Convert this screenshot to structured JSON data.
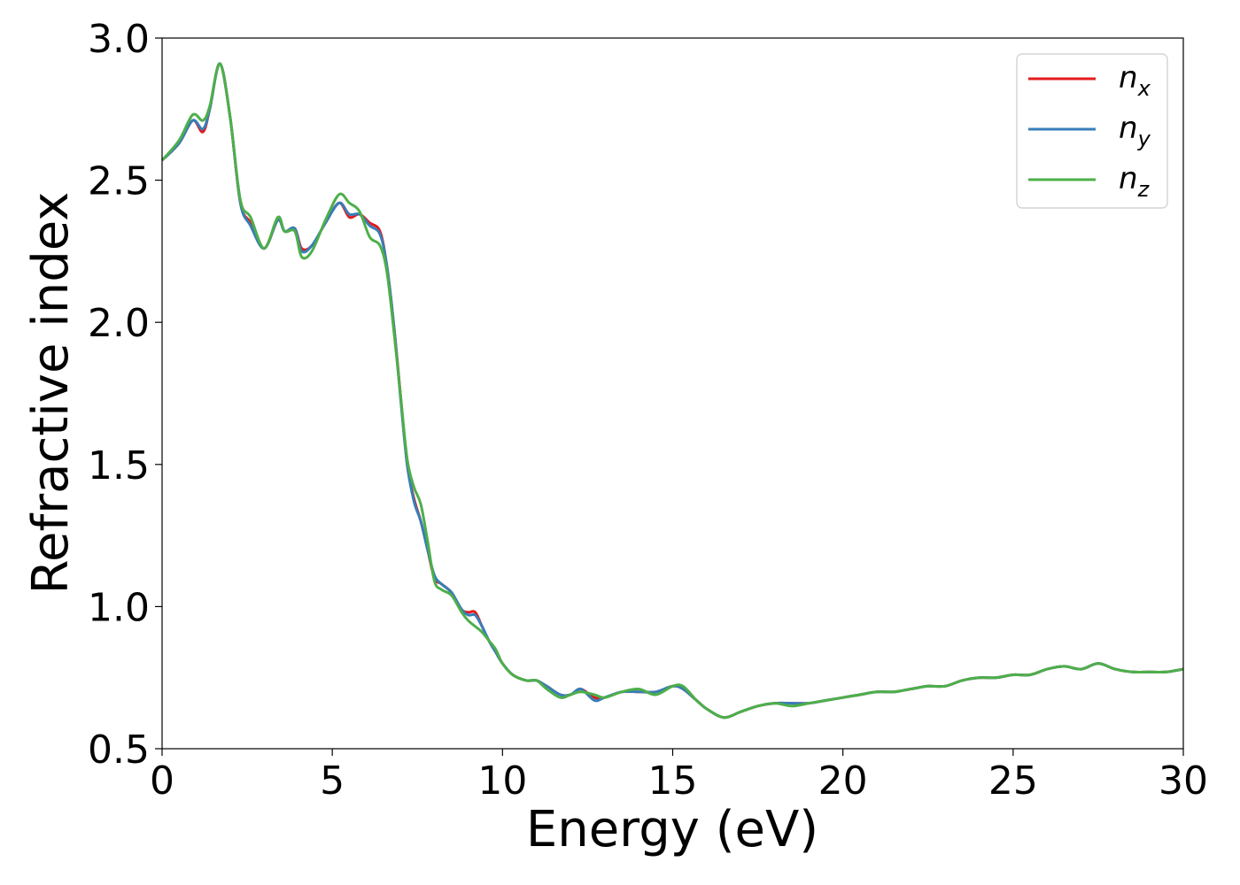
{
  "chart_data": {
    "type": "line",
    "title": "",
    "xlabel": "Energy (eV)",
    "ylabel": "Refractive index",
    "xlim": [
      0,
      30
    ],
    "ylim": [
      0.5,
      3.0
    ],
    "xticks": [
      0,
      5,
      10,
      15,
      20,
      25,
      30
    ],
    "xtick_labels": [
      "0",
      "5",
      "10",
      "15",
      "20",
      "25",
      "30"
    ],
    "yticks": [
      0.5,
      1.0,
      1.5,
      2.0,
      2.5,
      3.0
    ],
    "ytick_labels": [
      "0.5",
      "1.0",
      "1.5",
      "2.0",
      "2.5",
      "3.0"
    ],
    "grid": false,
    "legend_position": "top-right",
    "series": [
      {
        "name": "n_x",
        "label_main": "n",
        "label_sub": "x",
        "color": "#e41a1c",
        "x": [
          0,
          0.5,
          0.9,
          1.2,
          1.4,
          1.7,
          2.0,
          2.3,
          2.6,
          3.0,
          3.4,
          3.6,
          3.9,
          4.1,
          4.4,
          4.8,
          5.2,
          5.5,
          5.8,
          6.1,
          6.4,
          6.6,
          6.8,
          7.0,
          7.2,
          7.4,
          7.6,
          7.8,
          8.0,
          8.2,
          8.5,
          8.8,
          9.0,
          9.2,
          9.4,
          9.6,
          9.8,
          10.0,
          10.3,
          10.7,
          11.0,
          11.3,
          11.7,
          12.0,
          12.3,
          12.7,
          13.0,
          13.5,
          14.0,
          14.5,
          15.0,
          15.3,
          15.7,
          16.0,
          16.5,
          17.0,
          17.5,
          18.0,
          18.5,
          19.0,
          19.5,
          20.0,
          20.5,
          21.0,
          21.5,
          22.0,
          22.5,
          23.0,
          23.5,
          24.0,
          24.5,
          25.0,
          25.5,
          26.0,
          26.5,
          27.0,
          27.5,
          28.0,
          28.5,
          29.0,
          29.5,
          30.0
        ],
        "y": [
          2.57,
          2.63,
          2.71,
          2.67,
          2.75,
          2.91,
          2.72,
          2.42,
          2.35,
          2.26,
          2.36,
          2.32,
          2.33,
          2.26,
          2.27,
          2.35,
          2.42,
          2.37,
          2.38,
          2.35,
          2.32,
          2.2,
          2.0,
          1.75,
          1.5,
          1.38,
          1.3,
          1.2,
          1.1,
          1.08,
          1.05,
          0.99,
          0.98,
          0.98,
          0.93,
          0.88,
          0.84,
          0.8,
          0.76,
          0.74,
          0.74,
          0.72,
          0.69,
          0.69,
          0.71,
          0.68,
          0.68,
          0.7,
          0.7,
          0.7,
          0.72,
          0.71,
          0.67,
          0.64,
          0.61,
          0.63,
          0.65,
          0.66,
          0.66,
          0.66,
          0.67,
          0.68,
          0.69,
          0.7,
          0.7,
          0.71,
          0.72,
          0.72,
          0.74,
          0.75,
          0.75,
          0.76,
          0.76,
          0.78,
          0.79,
          0.78,
          0.8,
          0.78,
          0.77,
          0.77,
          0.77,
          0.78
        ]
      },
      {
        "name": "n_y",
        "label_main": "n",
        "label_sub": "y",
        "color": "#377eb8",
        "x": [
          0,
          0.5,
          0.9,
          1.2,
          1.4,
          1.7,
          2.0,
          2.3,
          2.6,
          3.0,
          3.4,
          3.6,
          3.9,
          4.1,
          4.4,
          4.8,
          5.2,
          5.5,
          5.8,
          6.1,
          6.4,
          6.6,
          6.8,
          7.0,
          7.2,
          7.4,
          7.6,
          7.8,
          8.0,
          8.2,
          8.5,
          8.8,
          9.0,
          9.2,
          9.4,
          9.6,
          9.8,
          10.0,
          10.3,
          10.7,
          11.0,
          11.3,
          11.7,
          12.0,
          12.3,
          12.7,
          13.0,
          13.5,
          14.0,
          14.5,
          15.0,
          15.3,
          15.7,
          16.0,
          16.5,
          17.0,
          17.5,
          18.0,
          18.5,
          19.0,
          19.5,
          20.0,
          20.5,
          21.0,
          21.5,
          22.0,
          22.5,
          23.0,
          23.5,
          24.0,
          24.5,
          25.0,
          25.5,
          26.0,
          26.5,
          27.0,
          27.5,
          28.0,
          28.5,
          29.0,
          29.5,
          30.0
        ],
        "y": [
          2.57,
          2.63,
          2.71,
          2.68,
          2.75,
          2.91,
          2.72,
          2.42,
          2.34,
          2.26,
          2.36,
          2.32,
          2.33,
          2.25,
          2.27,
          2.35,
          2.42,
          2.38,
          2.38,
          2.34,
          2.31,
          2.2,
          2.0,
          1.74,
          1.5,
          1.37,
          1.3,
          1.2,
          1.11,
          1.08,
          1.05,
          0.99,
          0.97,
          0.97,
          0.93,
          0.88,
          0.84,
          0.8,
          0.76,
          0.74,
          0.74,
          0.72,
          0.69,
          0.69,
          0.71,
          0.67,
          0.68,
          0.7,
          0.7,
          0.7,
          0.72,
          0.71,
          0.67,
          0.64,
          0.61,
          0.63,
          0.65,
          0.66,
          0.66,
          0.66,
          0.67,
          0.68,
          0.69,
          0.7,
          0.7,
          0.71,
          0.72,
          0.72,
          0.74,
          0.75,
          0.75,
          0.76,
          0.76,
          0.78,
          0.79,
          0.78,
          0.8,
          0.78,
          0.77,
          0.77,
          0.77,
          0.78
        ]
      },
      {
        "name": "n_z",
        "label_main": "n",
        "label_sub": "z",
        "color": "#4daf4a",
        "x": [
          0,
          0.5,
          0.9,
          1.2,
          1.4,
          1.7,
          2.0,
          2.3,
          2.6,
          3.0,
          3.4,
          3.6,
          3.9,
          4.1,
          4.4,
          4.8,
          5.2,
          5.5,
          5.8,
          6.1,
          6.4,
          6.6,
          6.8,
          7.0,
          7.2,
          7.4,
          7.6,
          7.8,
          8.0,
          8.2,
          8.5,
          8.8,
          9.0,
          9.2,
          9.4,
          9.6,
          9.8,
          10.0,
          10.3,
          10.7,
          11.0,
          11.3,
          11.7,
          12.0,
          12.3,
          12.7,
          13.0,
          13.5,
          14.0,
          14.5,
          15.0,
          15.3,
          15.7,
          16.0,
          16.5,
          17.0,
          17.5,
          18.0,
          18.5,
          19.0,
          19.5,
          20.0,
          20.5,
          21.0,
          21.5,
          22.0,
          22.5,
          23.0,
          23.5,
          24.0,
          24.5,
          25.0,
          25.5,
          26.0,
          26.5,
          27.0,
          27.5,
          28.0,
          28.5,
          29.0,
          29.5,
          30.0
        ],
        "y": [
          2.57,
          2.64,
          2.73,
          2.71,
          2.76,
          2.91,
          2.72,
          2.43,
          2.37,
          2.26,
          2.37,
          2.32,
          2.32,
          2.23,
          2.25,
          2.36,
          2.45,
          2.42,
          2.39,
          2.3,
          2.27,
          2.18,
          1.98,
          1.75,
          1.52,
          1.42,
          1.36,
          1.23,
          1.09,
          1.06,
          1.04,
          0.98,
          0.95,
          0.93,
          0.91,
          0.88,
          0.85,
          0.8,
          0.76,
          0.74,
          0.74,
          0.71,
          0.68,
          0.69,
          0.7,
          0.69,
          0.68,
          0.7,
          0.71,
          0.69,
          0.72,
          0.72,
          0.67,
          0.64,
          0.61,
          0.63,
          0.65,
          0.66,
          0.65,
          0.66,
          0.67,
          0.68,
          0.69,
          0.7,
          0.7,
          0.71,
          0.72,
          0.72,
          0.74,
          0.75,
          0.75,
          0.76,
          0.76,
          0.78,
          0.79,
          0.78,
          0.8,
          0.78,
          0.77,
          0.77,
          0.77,
          0.78
        ]
      }
    ]
  }
}
